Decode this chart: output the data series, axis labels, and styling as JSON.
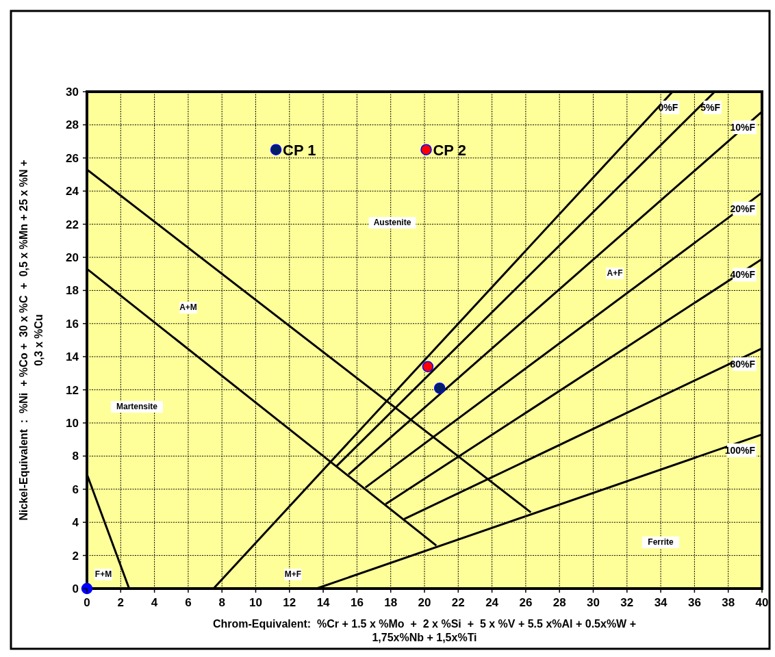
{
  "chart_data": {
    "type": "line",
    "xlabel": "Chrom-Equivalent:  %Cr + 1.5 x %Mo  +  2 x %Si  +  5 x %V + 5.5 x%Al + 0.5x%W + 1,75x%Nb + 1,5x%Ti",
    "ylabel": "Nickel-Equivalent  :  %Ni  + %Co +  30 x %C  +  0,5 x %Mn + 25 x %N + 0,3 x %Cu",
    "xlim": [
      0,
      40
    ],
    "ylim": [
      0,
      30
    ],
    "xticks": [
      0,
      2,
      4,
      6,
      8,
      10,
      12,
      14,
      16,
      18,
      20,
      22,
      24,
      26,
      28,
      30,
      32,
      34,
      36,
      38,
      40
    ],
    "yticks": [
      0,
      2,
      4,
      6,
      8,
      10,
      12,
      14,
      16,
      18,
      20,
      22,
      24,
      26,
      28,
      30
    ],
    "grid": true,
    "series": [
      {
        "color": "#000000",
        "x": [
          0,
          26.3
        ],
        "values": [
          25.3,
          4.6
        ]
      },
      {
        "color": "#000000",
        "x": [
          0,
          20.7
        ],
        "values": [
          19.3,
          2.6
        ]
      },
      {
        "color": "#000000",
        "x": [
          0,
          2.5
        ],
        "values": [
          6.9,
          0
        ]
      },
      {
        "name": "0%F",
        "color": "#000000",
        "x": [
          7.5,
          34.7
        ],
        "values": [
          0,
          30
        ]
      },
      {
        "name": "5%F",
        "color": "#000000",
        "x": [
          14.8,
          37.2
        ],
        "values": [
          7.4,
          30
        ]
      },
      {
        "name": "10%F",
        "color": "#000000",
        "x": [
          15.5,
          40
        ],
        "values": [
          6.9,
          28.8
        ]
      },
      {
        "name": "20%F",
        "color": "#000000",
        "x": [
          16.5,
          40
        ],
        "values": [
          6.1,
          23.9
        ]
      },
      {
        "name": "40%F",
        "color": "#000000",
        "x": [
          17.7,
          40
        ],
        "values": [
          5.1,
          19.9
        ]
      },
      {
        "name": "80%F",
        "color": "#000000",
        "x": [
          18.8,
          40
        ],
        "values": [
          4.2,
          14.5
        ]
      },
      {
        "name": "100%F",
        "color": "#000000",
        "x": [
          13.6,
          40
        ],
        "values": [
          0,
          9.3
        ]
      },
      {
        "type": "scatter",
        "name": "CP 1",
        "marker": "circle",
        "color": "#002060",
        "x": [
          11.2
        ],
        "values": [
          26.5
        ]
      },
      {
        "type": "scatter",
        "name": "CP 2",
        "marker": "circle",
        "color": "#ff0000",
        "x": [
          20.1
        ],
        "values": [
          26.5
        ]
      },
      {
        "type": "scatter",
        "marker": "circle",
        "color": "#ff0000",
        "x": [
          20.2
        ],
        "values": [
          13.4
        ]
      },
      {
        "type": "scatter",
        "marker": "circle",
        "color": "#002060",
        "x": [
          20.9
        ],
        "values": [
          12.1
        ]
      },
      {
        "type": "scatter",
        "marker": "circle",
        "color": "#0000ff",
        "x": [
          0
        ],
        "values": [
          0
        ]
      }
    ],
    "annotations": [
      "Austenite",
      "A+M",
      "Martensite",
      "F+M",
      "M+F",
      "A+F",
      "Ferrite"
    ]
  }
}
